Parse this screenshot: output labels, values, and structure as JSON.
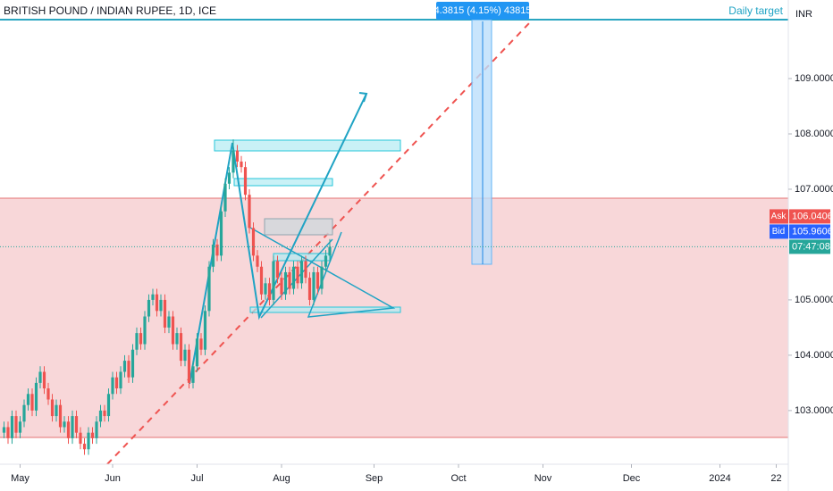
{
  "chart_data": {
    "type": "candlestick",
    "title": "BRITISH POUND / INDIAN RUPEE, 1D, ICE",
    "currency": "INR",
    "annotations": {
      "target_label": "Daily target",
      "measure_label": "4.3815 (4.15%) 43815"
    },
    "ask": {
      "label": "Ask",
      "value": 106.0406
    },
    "bid": {
      "label": "Bid",
      "value": 105.9606
    },
    "countdown": "07:47:08",
    "up_color": "#26a69a",
    "down_color": "#ef5350",
    "xlim": [
      -5,
      191
    ],
    "xticks": [
      {
        "value": 0,
        "label": "May"
      },
      {
        "value": 23,
        "label": "Jun"
      },
      {
        "value": 44,
        "label": "Jul"
      },
      {
        "value": 65,
        "label": "Aug"
      },
      {
        "value": 88,
        "label": "Sep"
      },
      {
        "value": 109,
        "label": "Oct"
      },
      {
        "value": 130,
        "label": "Nov"
      },
      {
        "value": 152,
        "label": "Dec"
      },
      {
        "value": 174,
        "label": "2024"
      },
      {
        "value": 188,
        "label": "22"
      }
    ],
    "ylim": [
      102.03,
      110.42
    ],
    "yticks": [
      {
        "value": 103,
        "label": "103.0000"
      },
      {
        "value": 104,
        "label": "104.0000"
      },
      {
        "value": 105,
        "label": "105.0000"
      },
      {
        "value": 107,
        "label": "107.0000"
      },
      {
        "value": 108,
        "label": "108.0000"
      },
      {
        "value": 109,
        "label": "109.0000"
      }
    ],
    "x": [
      -4,
      -3,
      -2,
      -1,
      0,
      1,
      2,
      3,
      4,
      5,
      6,
      7,
      8,
      9,
      10,
      11,
      12,
      13,
      14,
      15,
      16,
      17,
      18,
      19,
      20,
      21,
      22,
      23,
      24,
      25,
      26,
      27,
      28,
      29,
      30,
      31,
      32,
      33,
      34,
      35,
      36,
      37,
      38,
      39,
      40,
      41,
      42,
      43,
      44,
      45,
      46,
      47,
      48,
      49,
      50,
      51,
      52,
      53,
      54,
      55,
      56,
      57,
      58,
      59,
      60,
      61,
      62,
      63,
      64,
      65,
      66,
      67,
      68,
      69,
      70,
      71,
      72,
      73,
      74,
      75,
      76,
      77
    ],
    "open": [
      102.6,
      102.7,
      102.5,
      102.9,
      102.6,
      102.8,
      103.1,
      103.3,
      103.0,
      103.5,
      103.7,
      103.4,
      103.2,
      102.9,
      103.1,
      102.7,
      102.8,
      102.5,
      102.9,
      102.6,
      102.4,
      102.3,
      102.6,
      102.5,
      102.8,
      103.0,
      102.9,
      103.3,
      103.6,
      103.4,
      103.7,
      103.9,
      103.6,
      104.1,
      104.4,
      104.2,
      104.7,
      105.0,
      105.1,
      104.8,
      105.0,
      104.5,
      104.7,
      104.2,
      104.4,
      103.9,
      104.1,
      103.5,
      103.8,
      104.3,
      104.1,
      104.8,
      105.6,
      106.0,
      105.8,
      106.6,
      107.1,
      107.3,
      107.7,
      107.5,
      107.4,
      106.9,
      106.3,
      105.8,
      105.6,
      105.1,
      105.3,
      105.0,
      105.7,
      105.4,
      105.1,
      105.5,
      105.2,
      105.6,
      105.3,
      105.7,
      105.4,
      105.0,
      105.5,
      105.2,
      105.6,
      105.8
    ],
    "high": [
      102.8,
      102.8,
      103.0,
      103.0,
      102.9,
      103.2,
      103.4,
      103.4,
      103.6,
      103.8,
      103.8,
      103.5,
      103.3,
      103.2,
      103.2,
      102.9,
      102.9,
      103.0,
      103.0,
      102.7,
      102.5,
      102.7,
      102.7,
      102.9,
      103.1,
      103.1,
      103.4,
      103.7,
      103.7,
      103.8,
      104.0,
      104.0,
      104.2,
      104.5,
      104.5,
      104.8,
      105.1,
      105.2,
      105.2,
      105.1,
      105.1,
      104.8,
      104.8,
      104.5,
      104.5,
      104.2,
      104.2,
      103.9,
      104.4,
      104.4,
      104.9,
      105.7,
      106.1,
      106.1,
      106.7,
      107.2,
      107.4,
      107.9,
      107.8,
      107.6,
      107.5,
      107.0,
      106.4,
      105.9,
      105.7,
      105.4,
      105.4,
      105.8,
      105.8,
      105.5,
      105.6,
      105.6,
      105.7,
      105.7,
      105.8,
      105.8,
      105.5,
      105.6,
      105.6,
      105.7,
      105.9,
      106.1
    ],
    "low": [
      102.5,
      102.4,
      102.4,
      102.5,
      102.5,
      102.7,
      103.0,
      102.9,
      102.9,
      103.4,
      103.3,
      103.1,
      102.8,
      102.8,
      102.6,
      102.6,
      102.4,
      102.4,
      102.5,
      102.3,
      102.2,
      102.2,
      102.4,
      102.4,
      102.7,
      102.8,
      102.8,
      103.2,
      103.3,
      103.3,
      103.6,
      103.5,
      103.5,
      104.0,
      104.1,
      104.1,
      104.6,
      104.9,
      104.7,
      104.7,
      104.4,
      104.4,
      104.1,
      104.1,
      103.8,
      103.8,
      103.4,
      103.4,
      103.7,
      104.0,
      104.0,
      104.7,
      105.5,
      105.7,
      105.7,
      106.5,
      107.0,
      107.2,
      107.4,
      107.3,
      106.8,
      106.2,
      105.7,
      105.5,
      105.0,
      105.0,
      104.9,
      104.9,
      105.3,
      105.0,
      105.0,
      105.1,
      105.1,
      105.2,
      105.2,
      105.3,
      104.9,
      104.9,
      105.1,
      105.1,
      105.5,
      105.7
    ],
    "close": [
      102.7,
      102.5,
      102.9,
      102.6,
      102.8,
      103.1,
      103.3,
      103.0,
      103.5,
      103.7,
      103.4,
      103.2,
      102.9,
      103.1,
      102.7,
      102.8,
      102.5,
      102.9,
      102.6,
      102.4,
      102.3,
      102.6,
      102.5,
      102.8,
      103.0,
      102.9,
      103.3,
      103.6,
      103.4,
      103.7,
      103.9,
      103.6,
      104.1,
      104.4,
      104.2,
      104.7,
      105.0,
      105.1,
      104.8,
      105.0,
      104.5,
      104.7,
      104.2,
      104.4,
      103.9,
      104.1,
      103.5,
      103.8,
      104.3,
      104.1,
      104.8,
      105.6,
      106.0,
      105.8,
      106.6,
      107.1,
      107.3,
      107.7,
      107.5,
      107.4,
      106.9,
      106.3,
      105.8,
      105.6,
      105.1,
      105.3,
      105.0,
      105.7,
      105.4,
      105.1,
      105.5,
      105.2,
      105.6,
      105.3,
      105.7,
      105.4,
      105.0,
      105.5,
      105.2,
      105.6,
      105.8,
      105.96
    ]
  }
}
